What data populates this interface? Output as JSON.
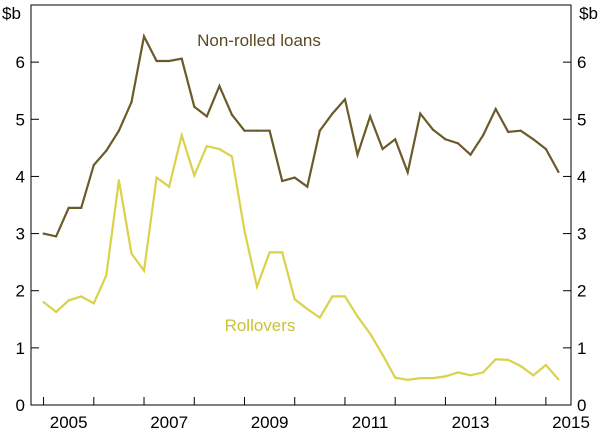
{
  "chart_data": {
    "type": "line",
    "y_unit_left": "$b",
    "y_unit_right": "$b",
    "ylim": [
      0,
      7
    ],
    "xlim": [
      2004.75,
      2015.5
    ],
    "x_ticks": [
      2005,
      2007,
      2009,
      2011,
      2013,
      2015
    ],
    "x_tick_labels": [
      "2005",
      "2007",
      "2009",
      "2011",
      "2013",
      "2015"
    ],
    "y_ticks": [
      0,
      1,
      2,
      3,
      4,
      5,
      6
    ],
    "y_tick_labels": [
      "0",
      "1",
      "2",
      "3",
      "4",
      "5",
      "6"
    ],
    "grid": false,
    "series": [
      {
        "name": "Non-rolled loans",
        "color": "#6b5a2a",
        "x": [
          2005.0,
          2005.25,
          2005.5,
          2005.75,
          2006.0,
          2006.25,
          2006.5,
          2006.75,
          2007.0,
          2007.25,
          2007.5,
          2007.75,
          2008.0,
          2008.25,
          2008.5,
          2008.75,
          2009.0,
          2009.25,
          2009.5,
          2009.75,
          2010.0,
          2010.25,
          2010.5,
          2010.75,
          2011.0,
          2011.25,
          2011.5,
          2011.75,
          2012.0,
          2012.25,
          2012.5,
          2012.75,
          2013.0,
          2013.25,
          2013.5,
          2013.75,
          2014.0,
          2014.25,
          2014.5,
          2014.75,
          2015.0,
          2015.25
        ],
        "values": [
          3.0,
          2.95,
          3.45,
          3.45,
          4.2,
          4.45,
          4.8,
          5.3,
          6.45,
          6.02,
          6.02,
          6.06,
          5.22,
          5.05,
          5.58,
          5.08,
          4.8,
          4.8,
          4.8,
          3.92,
          3.98,
          3.82,
          4.8,
          5.1,
          5.35,
          4.38,
          5.05,
          4.48,
          4.65,
          4.07,
          5.1,
          4.82,
          4.65,
          4.58,
          4.38,
          4.72,
          5.18,
          4.78,
          4.8,
          4.65,
          4.48,
          4.08
        ]
      },
      {
        "name": "Rollovers",
        "color": "#d9d24a",
        "x": [
          2005.0,
          2005.25,
          2005.5,
          2005.75,
          2006.0,
          2006.25,
          2006.5,
          2006.75,
          2007.0,
          2007.25,
          2007.5,
          2007.75,
          2008.0,
          2008.25,
          2008.5,
          2008.75,
          2009.0,
          2009.25,
          2009.5,
          2009.75,
          2010.0,
          2010.25,
          2010.5,
          2010.75,
          2011.0,
          2011.25,
          2011.5,
          2011.75,
          2012.0,
          2012.25,
          2012.5,
          2012.75,
          2013.0,
          2013.25,
          2013.5,
          2013.75,
          2014.0,
          2014.25,
          2014.5,
          2014.75,
          2015.0,
          2015.25
        ],
        "values": [
          1.8,
          1.63,
          1.83,
          1.9,
          1.78,
          2.27,
          3.93,
          2.65,
          2.35,
          3.98,
          3.82,
          4.72,
          4.02,
          4.53,
          4.48,
          4.35,
          3.05,
          2.07,
          2.67,
          2.67,
          1.85,
          1.68,
          1.53,
          1.9,
          1.9,
          1.55,
          1.25,
          0.88,
          0.48,
          0.44,
          0.47,
          0.47,
          0.5,
          0.57,
          0.52,
          0.57,
          0.8,
          0.79,
          0.68,
          0.52,
          0.7,
          0.45
        ]
      }
    ],
    "annotations": [
      {
        "text": "Non-rolled loans",
        "series": 0
      },
      {
        "text": "Rollovers",
        "series": 1
      }
    ],
    "axis_color": "#000000"
  }
}
